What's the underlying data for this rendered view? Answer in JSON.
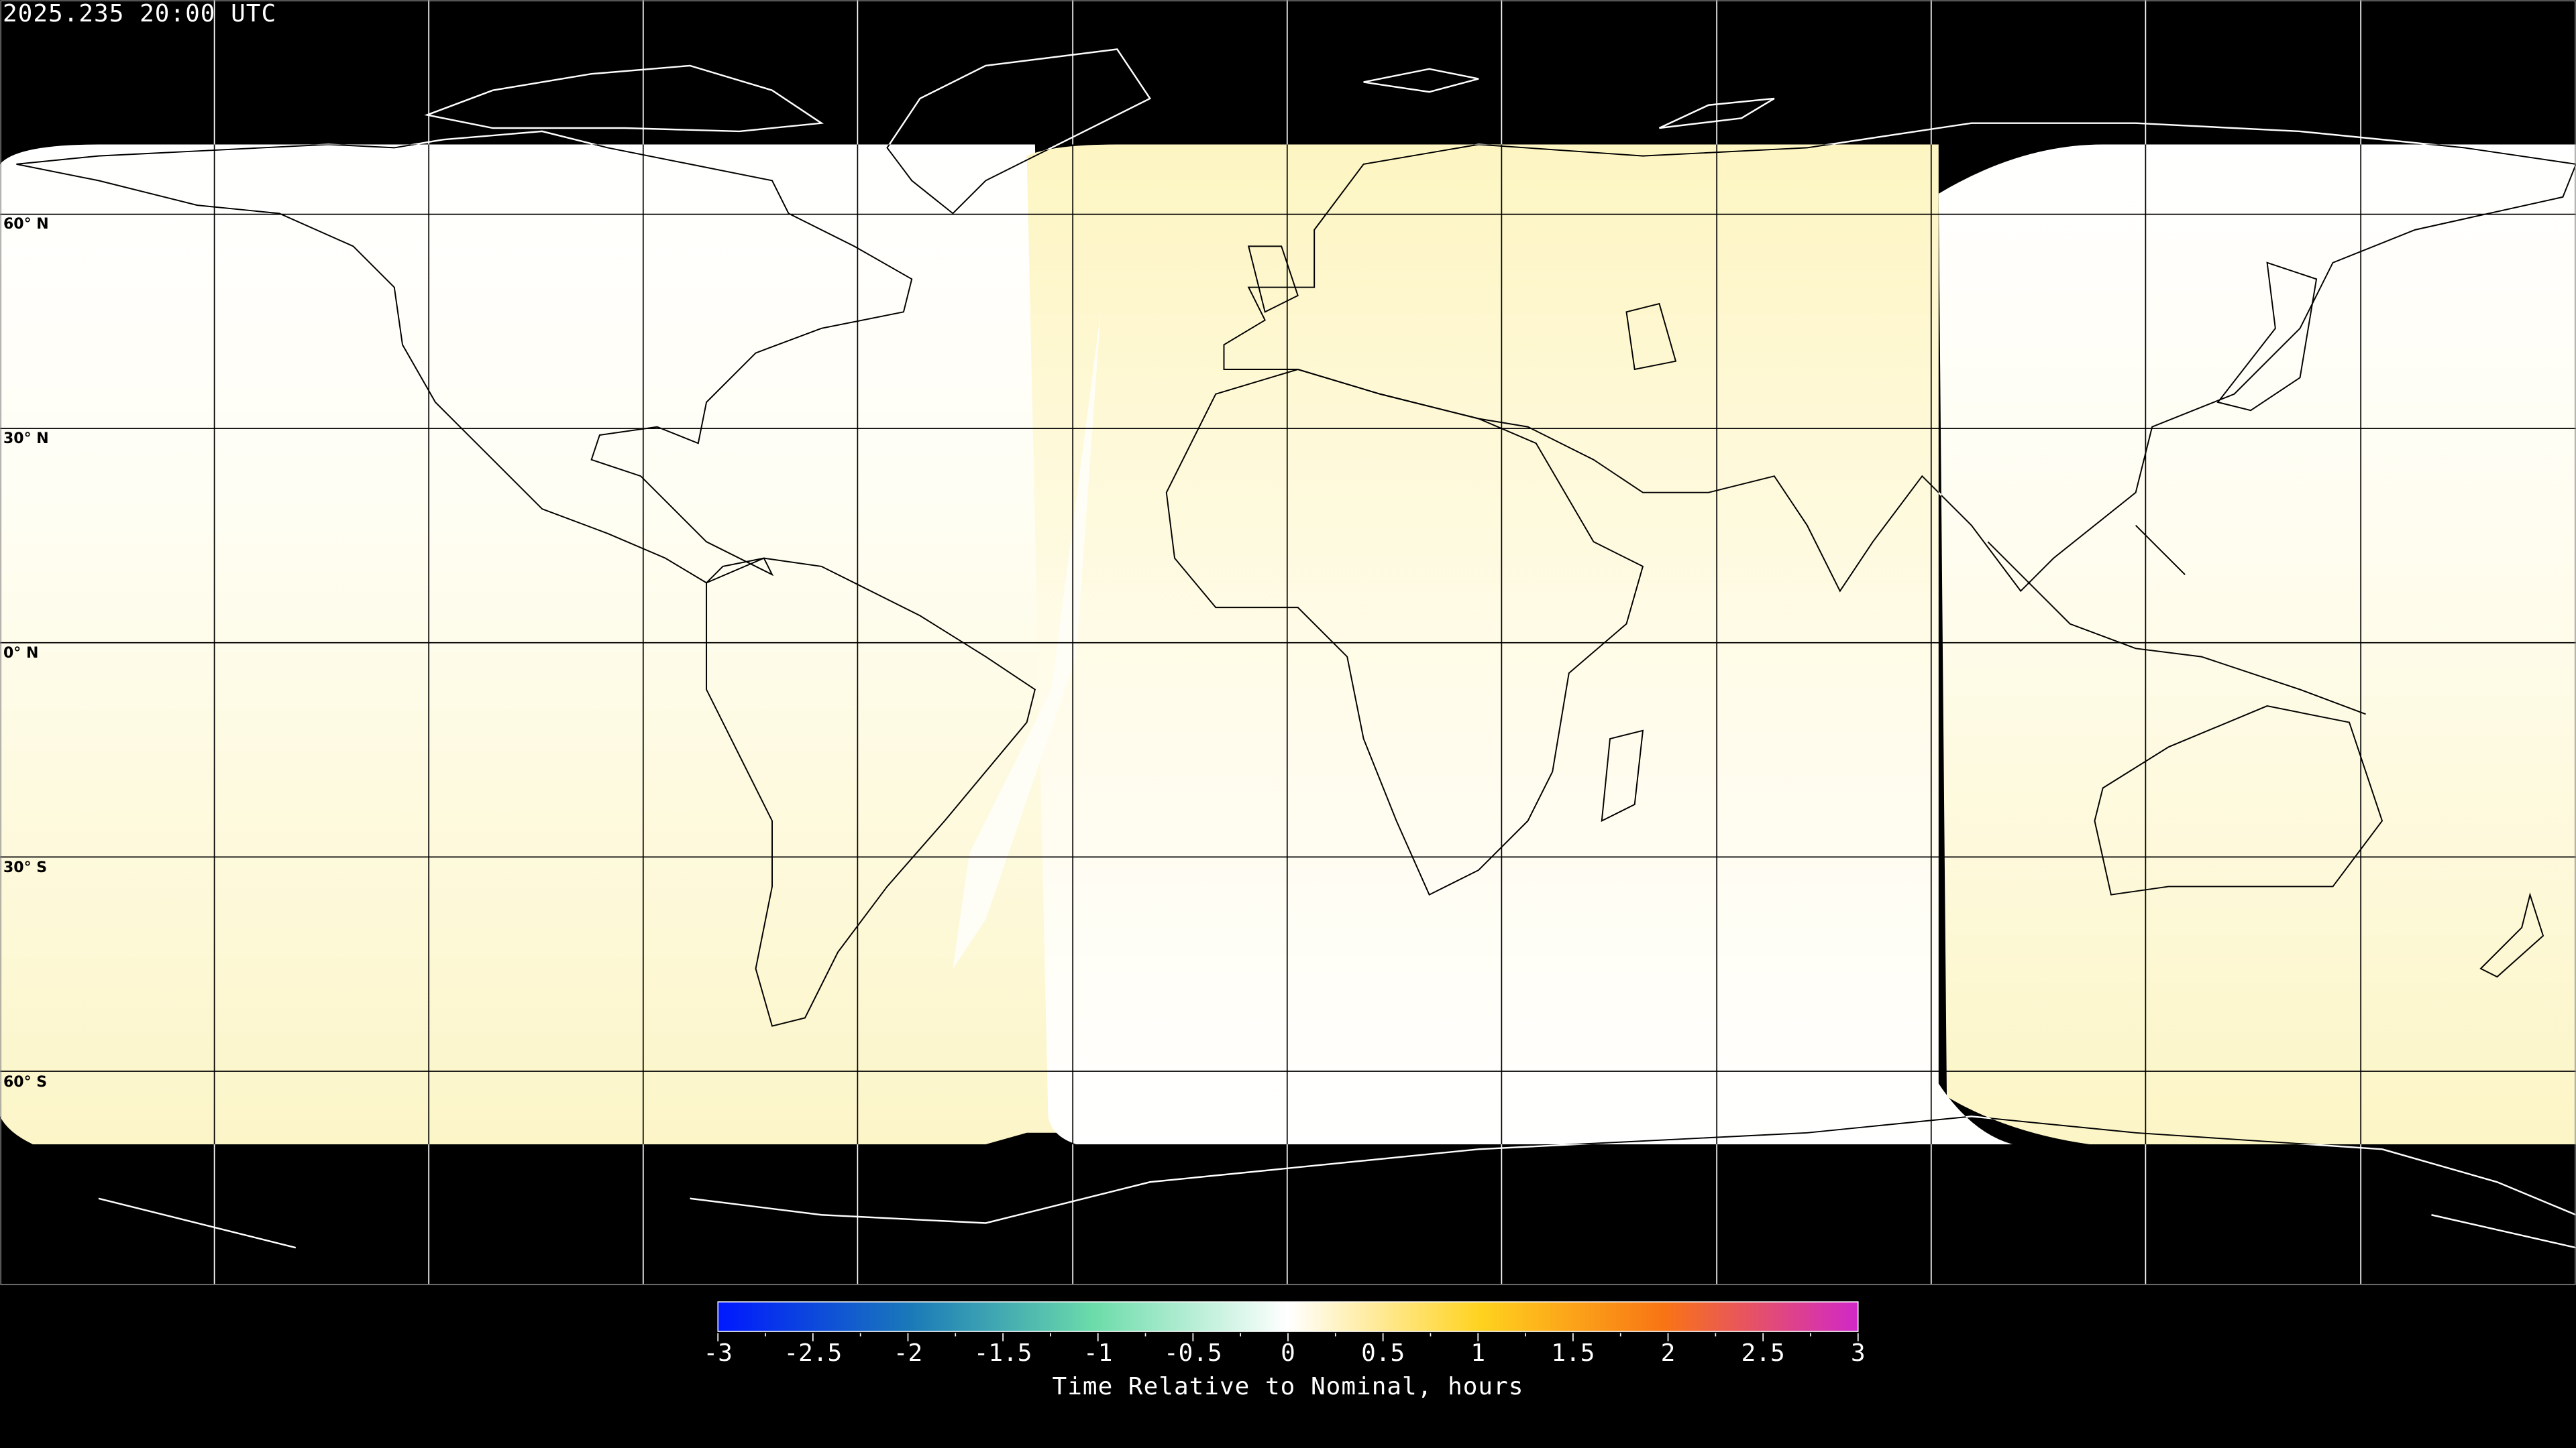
{
  "title": "2025.235 20:00 UTC",
  "latitude_labels": [
    "60° N",
    "30° N",
    "0° N",
    "30° S",
    "60° S"
  ],
  "colorbar": {
    "label": "Time Relative to Nominal, hours",
    "min": -3,
    "max": 3,
    "ticks": [
      "-3",
      "-2.5",
      "-2",
      "-1.5",
      "-1",
      "-0.5",
      "0",
      "0.5",
      "1",
      "1.5",
      "2",
      "2.5",
      "3"
    ],
    "colors": [
      "#0018ff",
      "#1a7ab8",
      "#6cdcaa",
      "#ffffff",
      "#ffd21e",
      "#f87414",
      "#d028c8"
    ]
  },
  "regions": [
    {
      "name": "western-region",
      "value_top": 0.0,
      "value_bottom": 0.15
    },
    {
      "name": "central-region",
      "value_top": 0.2,
      "value_bottom": 0.0
    },
    {
      "name": "eastern-region",
      "value_top": 0.0,
      "value_bottom": 0.15
    }
  ],
  "background_color": "#000000"
}
